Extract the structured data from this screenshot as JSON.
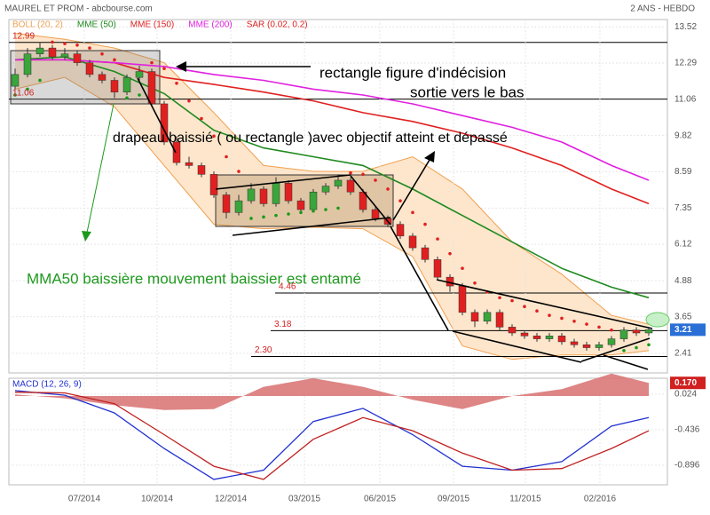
{
  "chart_data": [
    {
      "type": "candlestick",
      "title": "MAUREL ET PROM - abcbourse.com",
      "subtitle": "2 ANS - HEBDO",
      "xlim": [
        -0.5,
        52.5
      ],
      "ylim": [
        1.74,
        13.77
      ],
      "yticks": [
        13.52,
        12.29,
        11.06,
        9.82,
        8.59,
        7.35,
        6.12,
        4.88,
        3.65,
        2.41
      ],
      "grid": true,
      "up_color": "#3aa53a",
      "down_color": "#e02020",
      "open": [
        11.5,
        11.9,
        12.6,
        12.8,
        12.5,
        12.6,
        12.3,
        11.9,
        11.7,
        11.3,
        11.8,
        12.0,
        10.9,
        9.6,
        8.9,
        8.8,
        8.5,
        7.8,
        7.2,
        7.6,
        8.0,
        7.5,
        8.2,
        7.6,
        7.3,
        7.9,
        8.1,
        8.3,
        7.9,
        7.3,
        7.0,
        6.8,
        6.4,
        6.0,
        5.6,
        5.0,
        4.7,
        3.8,
        3.5,
        3.8,
        3.3,
        3.1,
        3.0,
        2.9,
        3.0,
        2.8,
        2.7,
        2.6,
        2.7,
        2.9,
        3.2,
        3.1
      ],
      "high": [
        12.1,
        12.8,
        13.0,
        12.9,
        12.8,
        12.7,
        12.4,
        12.0,
        11.8,
        11.9,
        12.2,
        12.1,
        11.0,
        9.8,
        9.1,
        8.9,
        8.6,
        7.9,
        7.8,
        8.2,
        8.1,
        8.4,
        8.3,
        7.7,
        8.0,
        8.2,
        8.5,
        8.4,
        8.0,
        7.4,
        7.1,
        6.9,
        6.5,
        6.1,
        5.7,
        5.1,
        4.8,
        3.9,
        3.9,
        3.9,
        3.4,
        3.2,
        3.1,
        3.1,
        3.1,
        2.9,
        2.8,
        2.8,
        3.0,
        3.3,
        3.3,
        3.3
      ],
      "low": [
        11.4,
        11.8,
        12.5,
        12.4,
        12.4,
        12.2,
        11.8,
        11.6,
        11.1,
        11.2,
        11.7,
        10.8,
        9.5,
        8.8,
        8.7,
        8.4,
        7.7,
        7.0,
        7.1,
        7.5,
        7.4,
        7.4,
        7.5,
        7.2,
        7.2,
        7.8,
        8.0,
        7.8,
        7.2,
        6.9,
        6.7,
        6.3,
        5.9,
        5.5,
        4.9,
        4.5,
        3.7,
        3.3,
        3.4,
        3.2,
        3.0,
        2.9,
        2.8,
        2.8,
        2.7,
        2.6,
        2.5,
        2.5,
        2.6,
        2.8,
        3.0,
        3.0
      ],
      "close": [
        11.9,
        12.6,
        12.8,
        12.5,
        12.6,
        12.3,
        11.9,
        11.7,
        11.3,
        11.8,
        12.0,
        10.9,
        9.6,
        8.9,
        8.8,
        8.5,
        7.8,
        7.2,
        7.6,
        8.0,
        7.5,
        8.2,
        7.6,
        7.3,
        7.9,
        8.1,
        8.3,
        7.9,
        7.3,
        7.0,
        6.8,
        6.4,
        6.0,
        5.6,
        5.0,
        4.7,
        3.8,
        3.5,
        3.8,
        3.3,
        3.1,
        3.0,
        2.9,
        3.0,
        2.8,
        2.7,
        2.6,
        2.7,
        2.9,
        3.2,
        3.1,
        3.21
      ],
      "indicator_x": [
        0,
        4,
        8,
        12,
        16,
        20,
        24,
        28,
        32,
        36,
        40,
        44,
        48,
        51
      ],
      "bollinger": {
        "name": "BOLL (20, 2)",
        "color": "#f0a050",
        "fill": "#fde6cc",
        "upper": [
          13.3,
          13.1,
          12.8,
          12.3,
          10.6,
          8.8,
          8.6,
          8.6,
          9.1,
          8.0,
          6.2,
          5.1,
          3.7,
          3.4
        ],
        "lower": [
          11.4,
          11.8,
          10.8,
          8.8,
          6.8,
          6.65,
          6.7,
          6.65,
          5.7,
          2.66,
          2.2,
          2.35,
          2.35,
          2.5
        ]
      },
      "series": [
        {
          "name": "MME (50)",
          "color": "#1f8a1f",
          "values": [
            12.4,
            12.5,
            12.0,
            11.25,
            10.0,
            9.4,
            9.1,
            8.8,
            8.0,
            7.1,
            6.2,
            5.3,
            4.66,
            4.3
          ]
        },
        {
          "name": "MME (150)",
          "color": "#e02020",
          "values": [
            12.4,
            12.4,
            12.3,
            11.8,
            11.56,
            11.3,
            11.0,
            10.6,
            10.3,
            9.9,
            9.4,
            8.8,
            8.0,
            7.5
          ]
        },
        {
          "name": "MME (200)",
          "color": "#e020e0",
          "values": [
            12.4,
            12.4,
            12.3,
            12.17,
            11.9,
            11.7,
            11.4,
            11.2,
            10.9,
            10.5,
            10.1,
            9.6,
            8.8,
            8.3
          ]
        }
      ],
      "sar": {
        "name": "SAR (0.02, 0.2)",
        "color": "#e02020",
        "below_color": "#1a9a1a",
        "values": [
          11.2,
          11.4,
          11.7,
          13.0,
          12.95,
          12.9,
          12.8,
          12.6,
          12.4,
          11.1,
          11.2,
          12.3,
          12.1,
          11.6,
          11.0,
          10.4,
          9.8,
          9.1,
          8.6,
          7.0,
          7.05,
          7.1,
          7.15,
          7.2,
          7.25,
          7.3,
          7.35,
          8.55,
          8.5,
          8.3,
          8.0,
          7.6,
          7.2,
          6.8,
          6.3,
          5.8,
          5.3,
          4.8,
          4.5,
          4.3,
          4.2,
          4.0,
          3.85,
          3.7,
          3.6,
          3.5,
          3.4,
          3.3,
          3.2,
          2.5,
          2.6,
          2.7
        ]
      },
      "levels": [
        12.99,
        11.06,
        4.46,
        3.18,
        {
          "value": 2.3,
          "label": "2.30"
        }
      ],
      "annotations": [
        "rectangle figure d'indécision",
        "sortie vers le bas",
        "drapeau baissié ( ou rectangle )avec objectif atteint et dépassé",
        "MMA50 baissière mouvement baissier est entamé"
      ]
    },
    {
      "type": "macd",
      "title": "MACD (12, 26, 9)",
      "xlim": [
        -0.5,
        52.5
      ],
      "ylim": [
        -1.15,
        0.23
      ],
      "yticks": [
        0.024,
        -0.436,
        -0.896
      ],
      "xticks": [
        {
          "value": 5.57,
          "label": "07/2014"
        },
        {
          "value": 11.43,
          "label": "10/2014"
        },
        {
          "value": 17.36,
          "label": "12/2014"
        },
        {
          "value": 23.29,
          "label": "03/2015"
        },
        {
          "value": 29.36,
          "label": "06/2015"
        },
        {
          "value": 35.29,
          "label": "09/2015"
        },
        {
          "value": 41.07,
          "label": "11/2015"
        },
        {
          "value": 47.07,
          "label": "02/2016"
        }
      ],
      "x": [
        0,
        4,
        8,
        12,
        16,
        20,
        24,
        28,
        32,
        36,
        40,
        44,
        48,
        51
      ],
      "macd": {
        "color": "#2030d0",
        "values": [
          0.07,
          0.01,
          -0.22,
          -0.68,
          -1.08,
          -0.96,
          -0.33,
          -0.16,
          -0.5,
          -0.91,
          -0.96,
          -0.85,
          -0.39,
          -0.28
        ]
      },
      "signal": {
        "color": "#c02020",
        "values": [
          0.05,
          0.04,
          -0.1,
          -0.5,
          -0.91,
          -1.08,
          -0.56,
          -0.28,
          -0.45,
          -0.74,
          -0.96,
          -0.94,
          -0.68,
          -0.45
        ]
      },
      "histogram": {
        "color": "#d87070",
        "values": [
          0.02,
          -0.03,
          -0.12,
          -0.18,
          -0.17,
          0.12,
          0.23,
          0.12,
          -0.05,
          -0.17,
          0.0,
          0.09,
          0.29,
          0.17
        ],
        "last_value_label": "0.170"
      }
    }
  ]
}
